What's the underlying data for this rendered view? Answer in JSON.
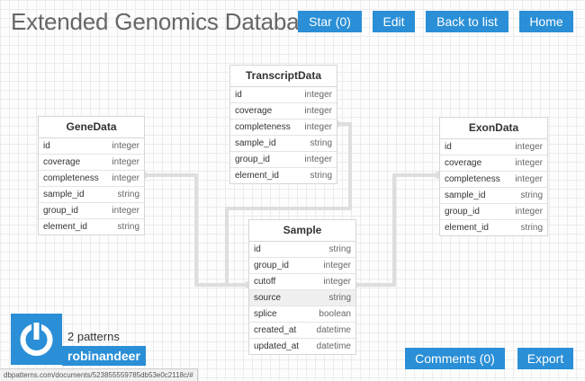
{
  "header": {
    "title": "Extended Genomics Database",
    "star_label": "Star (0)",
    "edit_label": "Edit",
    "back_label": "Back to list",
    "home_label": "Home"
  },
  "tables": {
    "transcript": {
      "name": "TranscriptData",
      "fields": [
        {
          "name": "id",
          "type": "integer"
        },
        {
          "name": "coverage",
          "type": "integer"
        },
        {
          "name": "completeness",
          "type": "integer"
        },
        {
          "name": "sample_id",
          "type": "string"
        },
        {
          "name": "group_id",
          "type": "integer"
        },
        {
          "name": "element_id",
          "type": "string"
        }
      ]
    },
    "gene": {
      "name": "GeneData",
      "fields": [
        {
          "name": "id",
          "type": "integer"
        },
        {
          "name": "coverage",
          "type": "integer"
        },
        {
          "name": "completeness",
          "type": "integer"
        },
        {
          "name": "sample_id",
          "type": "string"
        },
        {
          "name": "group_id",
          "type": "integer"
        },
        {
          "name": "element_id",
          "type": "string"
        }
      ]
    },
    "exon": {
      "name": "ExonData",
      "fields": [
        {
          "name": "id",
          "type": "integer"
        },
        {
          "name": "coverage",
          "type": "integer"
        },
        {
          "name": "completeness",
          "type": "integer"
        },
        {
          "name": "sample_id",
          "type": "string"
        },
        {
          "name": "group_id",
          "type": "integer"
        },
        {
          "name": "element_id",
          "type": "string"
        }
      ]
    },
    "sample": {
      "name": "Sample",
      "fields": [
        {
          "name": "id",
          "type": "string"
        },
        {
          "name": "group_id",
          "type": "integer"
        },
        {
          "name": "cutoff",
          "type": "integer"
        },
        {
          "name": "source",
          "type": "string"
        },
        {
          "name": "splice",
          "type": "boolean"
        },
        {
          "name": "created_at",
          "type": "datetime"
        },
        {
          "name": "updated_at",
          "type": "datetime"
        }
      ]
    }
  },
  "profile": {
    "patterns": "2 patterns",
    "username": "robinandeer",
    "avatar_icon": "power-icon"
  },
  "footer": {
    "comments_label": "Comments (0)",
    "export_label": "Export"
  },
  "statusbar": {
    "url": "dbpatterns.com/documents/523855559785db53e0c2118c/#"
  },
  "colors": {
    "accent": "#2a8fd6",
    "link_line": "#dedede"
  }
}
